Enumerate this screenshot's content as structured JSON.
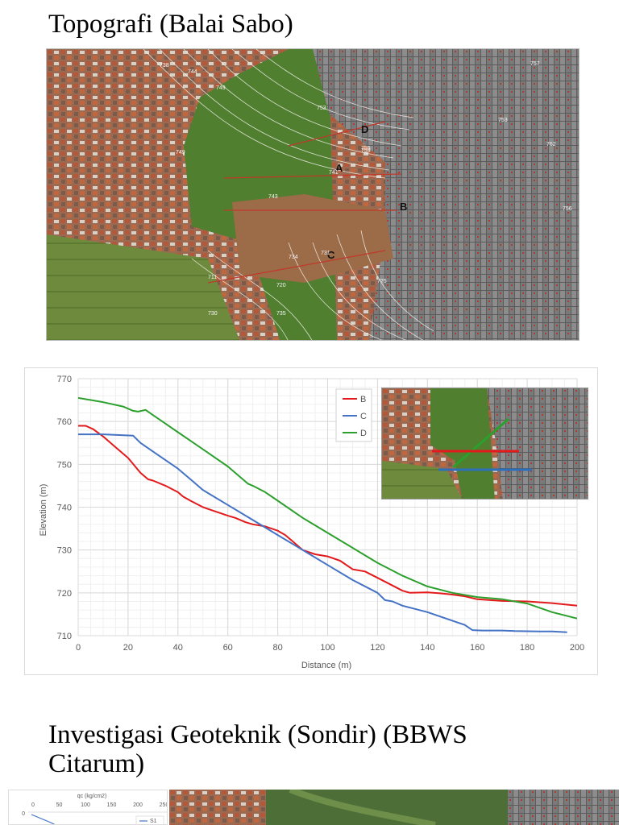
{
  "headings": {
    "topo": "Topografi (Balai Sabo)",
    "investigasi": "Investigasi Geoteknik (Sondir) (BBWS Citarum)"
  },
  "topo_map": {
    "section_labels": [
      "A",
      "B",
      "C",
      "D"
    ],
    "contour_labels": [
      "738",
      "744",
      "749",
      "741",
      "755",
      "753",
      "759",
      "749",
      "743",
      "734",
      "731",
      "711",
      "720",
      "725",
      "730",
      "735",
      "757",
      "762",
      "753",
      "756"
    ],
    "colors": {
      "vegetation": "#5f8a3a",
      "roofs": "#8a5a44",
      "urban": "#6d6d6d",
      "contour": "#f0eee8",
      "section": "#c0392b"
    }
  },
  "chart_data": {
    "type": "line",
    "xlabel": "Distance (m)",
    "ylabel": "Elevation (m)",
    "xlim": [
      0,
      200
    ],
    "ylim": [
      710,
      770
    ],
    "xticks": [
      0,
      20,
      40,
      60,
      80,
      100,
      120,
      140,
      160,
      180,
      200
    ],
    "yticks": [
      710,
      720,
      730,
      740,
      750,
      760,
      770
    ],
    "grid": true,
    "legend_position": "top-right",
    "series": [
      {
        "name": "B",
        "color": "#e31a1c",
        "points": [
          [
            0,
            759
          ],
          [
            3,
            759
          ],
          [
            6,
            758.2
          ],
          [
            10,
            756.5
          ],
          [
            15,
            754
          ],
          [
            20,
            751.5
          ],
          [
            25,
            748
          ],
          [
            28,
            746.5
          ],
          [
            30,
            746.2
          ],
          [
            35,
            745
          ],
          [
            40,
            743.5
          ],
          [
            42,
            742.5
          ],
          [
            45,
            741.5
          ],
          [
            50,
            740
          ],
          [
            55,
            739
          ],
          [
            60,
            738
          ],
          [
            63,
            737.5
          ],
          [
            67,
            736.5
          ],
          [
            70,
            736
          ],
          [
            75,
            735.5
          ],
          [
            80,
            734.5
          ],
          [
            83,
            733.5
          ],
          [
            86,
            732
          ],
          [
            90,
            730
          ],
          [
            95,
            729
          ],
          [
            100,
            728.5
          ],
          [
            105,
            727.5
          ],
          [
            110,
            725.5
          ],
          [
            115,
            725
          ],
          [
            120,
            723.5
          ],
          [
            125,
            722
          ],
          [
            130,
            720.5
          ],
          [
            133,
            720
          ],
          [
            140,
            720.1
          ],
          [
            145,
            719.9
          ],
          [
            150,
            719.6
          ],
          [
            155,
            719.2
          ],
          [
            160,
            718.5
          ],
          [
            170,
            718.1
          ],
          [
            180,
            718
          ],
          [
            190,
            717.6
          ],
          [
            200,
            717
          ]
        ]
      },
      {
        "name": "C",
        "color": "#4472c4",
        "points": [
          [
            0,
            757
          ],
          [
            10,
            757
          ],
          [
            22,
            756.7
          ],
          [
            25,
            755
          ],
          [
            30,
            753
          ],
          [
            40,
            749
          ],
          [
            45,
            746.5
          ],
          [
            50,
            744
          ],
          [
            60,
            740.5
          ],
          [
            70,
            737
          ],
          [
            80,
            733.5
          ],
          [
            90,
            730
          ],
          [
            100,
            726.5
          ],
          [
            110,
            723
          ],
          [
            120,
            720
          ],
          [
            123,
            718.3
          ],
          [
            126,
            718
          ],
          [
            130,
            717
          ],
          [
            140,
            715.5
          ],
          [
            150,
            713.5
          ],
          [
            155,
            712.5
          ],
          [
            158,
            711.3
          ],
          [
            162,
            711.2
          ],
          [
            170,
            711.2
          ],
          [
            175,
            711.1
          ],
          [
            185,
            711
          ],
          [
            190,
            711
          ],
          [
            196,
            710.8
          ]
        ]
      },
      {
        "name": "D",
        "color": "#2ca02c",
        "points": [
          [
            0,
            765.5
          ],
          [
            10,
            764.5
          ],
          [
            18,
            763.5
          ],
          [
            22,
            762.5
          ],
          [
            24,
            762.3
          ],
          [
            27,
            762.7
          ],
          [
            30,
            761.5
          ],
          [
            35,
            759.5
          ],
          [
            40,
            757.5
          ],
          [
            45,
            755.5
          ],
          [
            50,
            753.5
          ],
          [
            60,
            749.5
          ],
          [
            68,
            745.5
          ],
          [
            70,
            745
          ],
          [
            75,
            743.5
          ],
          [
            80,
            741.5
          ],
          [
            90,
            737.5
          ],
          [
            100,
            734
          ],
          [
            110,
            730.5
          ],
          [
            120,
            727
          ],
          [
            130,
            724
          ],
          [
            140,
            721.5
          ],
          [
            150,
            720
          ],
          [
            160,
            719
          ],
          [
            170,
            718.5
          ],
          [
            180,
            717.5
          ],
          [
            190,
            715.5
          ],
          [
            200,
            714
          ]
        ]
      }
    ]
  },
  "inset_map": {
    "lines": [
      {
        "name": "B",
        "color": "#e31a1c"
      },
      {
        "name": "C",
        "color": "#2c6fbd"
      },
      {
        "name": "D",
        "color": "#2ca02c"
      }
    ]
  },
  "sondir": {
    "axis_title": "qc (kg/cm2)",
    "ticks": [
      "0",
      "50",
      "100",
      "150",
      "200",
      "250"
    ],
    "y_first_tick": "0",
    "legend": "S1"
  }
}
